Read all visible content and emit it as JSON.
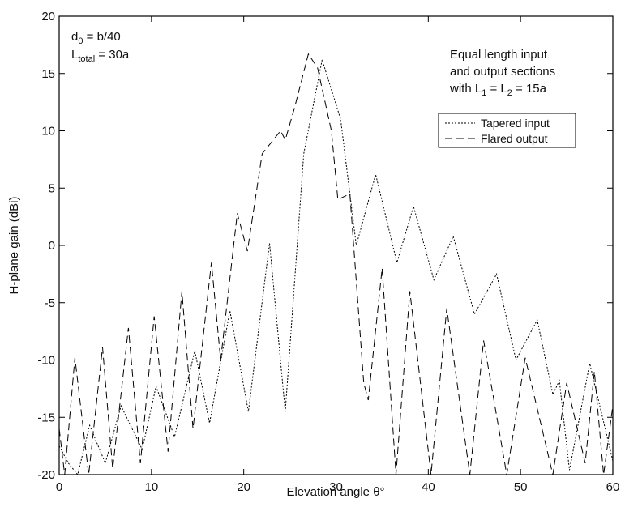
{
  "chart_data": {
    "type": "line",
    "xlabel": "Elevation angle θ°",
    "ylabel": "H-plane gain (dBi)",
    "xlim": [
      0,
      60
    ],
    "xticks": [
      0,
      10,
      20,
      30,
      40,
      50,
      60
    ],
    "ylim": [
      -20,
      20
    ],
    "yticks": [
      -20,
      -15,
      -10,
      -5,
      0,
      5,
      10,
      15,
      20
    ],
    "annotations": {
      "left": [
        [
          "d",
          "0",
          " = b/40"
        ],
        [
          "L",
          "total",
          " = 30a"
        ]
      ],
      "right": [
        [
          "Equal length input"
        ],
        [
          "and output sections"
        ],
        [
          "with L",
          "1",
          " = L",
          "2",
          " = 15a"
        ]
      ]
    },
    "series": [
      {
        "name": "Tapered input",
        "color": "#000000",
        "style": "dotted",
        "x": [
          0,
          1,
          2,
          3.3,
          5,
          6.7,
          9,
          10.5,
          12.5,
          14.7,
          16.3,
          18.5,
          20.5,
          22.8,
          24.5,
          26.5,
          28.5,
          30.5,
          32.2,
          34.3,
          36.6,
          38.4,
          40.6,
          42.7,
          45,
          47.4,
          49.5,
          51.8,
          53.5,
          54.2,
          55.3,
          57.5,
          60
        ],
        "values": [
          -17.5,
          -19,
          -20,
          -15.7,
          -19,
          -14,
          -17.8,
          -12.3,
          -16.7,
          -9.2,
          -15.5,
          -5.7,
          -14.5,
          0.2,
          -14.5,
          8,
          16.2,
          11,
          0,
          6.2,
          -1.5,
          3.4,
          -3,
          0.8,
          -6,
          -2.5,
          -10,
          -6.5,
          -13,
          -11.8,
          -19.6,
          -10.3,
          -18.8
        ]
      },
      {
        "name": "Flared output",
        "color": "#000000",
        "style": "dashed",
        "x": [
          0,
          0.6,
          1.7,
          3.2,
          4.7,
          5.8,
          7.5,
          8.8,
          10.3,
          11.8,
          13.3,
          14.5,
          16.5,
          17.5,
          19.3,
          20.4,
          22,
          24,
          24.5,
          25.5,
          27,
          28,
          29.5,
          30.2,
          31.5,
          33,
          33.5,
          35,
          36.5,
          38,
          40.3,
          42,
          44.5,
          46,
          48.5,
          50.5,
          53.5,
          55,
          57,
          58,
          59,
          60
        ],
        "values": [
          -16,
          -20,
          -9.8,
          -20,
          -8.9,
          -19.5,
          -7.2,
          -19,
          -6.2,
          -18,
          -4,
          -16,
          -1.5,
          -10,
          2.8,
          -0.5,
          8,
          10,
          9.2,
          12,
          16.7,
          15.5,
          10,
          4,
          4.5,
          -12,
          -13.5,
          -2,
          -20,
          -4,
          -20,
          -5.5,
          -20,
          -8.3,
          -20,
          -9.8,
          -20,
          -12,
          -19,
          -11,
          -20,
          -14
        ]
      }
    ],
    "legend": "upper right"
  }
}
